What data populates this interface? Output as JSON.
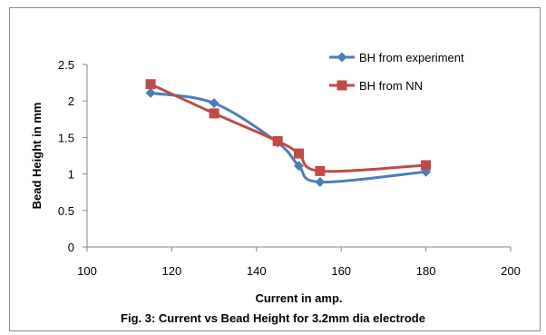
{
  "chart_data": {
    "type": "line",
    "title": "",
    "xlabel": "Current in amp.",
    "ylabel": "Bead Height in mm",
    "xlim": [
      100,
      200
    ],
    "ylim": [
      0,
      2.5
    ],
    "x_ticks": [
      "100",
      "120",
      "140",
      "160",
      "180",
      "200"
    ],
    "y_ticks": [
      "0",
      "0.5",
      "1",
      "1.5",
      "2",
      "2.5"
    ],
    "grid": false,
    "legend_position": "top-right",
    "smooth": true,
    "series": [
      {
        "name": "BH from experiment",
        "color": "#4a7ebb",
        "marker": "diamond",
        "x": [
          115,
          130,
          145,
          150,
          155,
          180
        ],
        "y": [
          2.11,
          1.97,
          1.43,
          1.11,
          0.89,
          1.03
        ]
      },
      {
        "name": "BH from NN",
        "color": "#be4b48",
        "marker": "square",
        "x": [
          115,
          130,
          145,
          150,
          155,
          180
        ],
        "y": [
          2.23,
          1.83,
          1.45,
          1.28,
          1.04,
          1.12
        ]
      }
    ]
  },
  "caption": "Fig. 3: Current vs Bead Height for 3.2mm dia electrode"
}
